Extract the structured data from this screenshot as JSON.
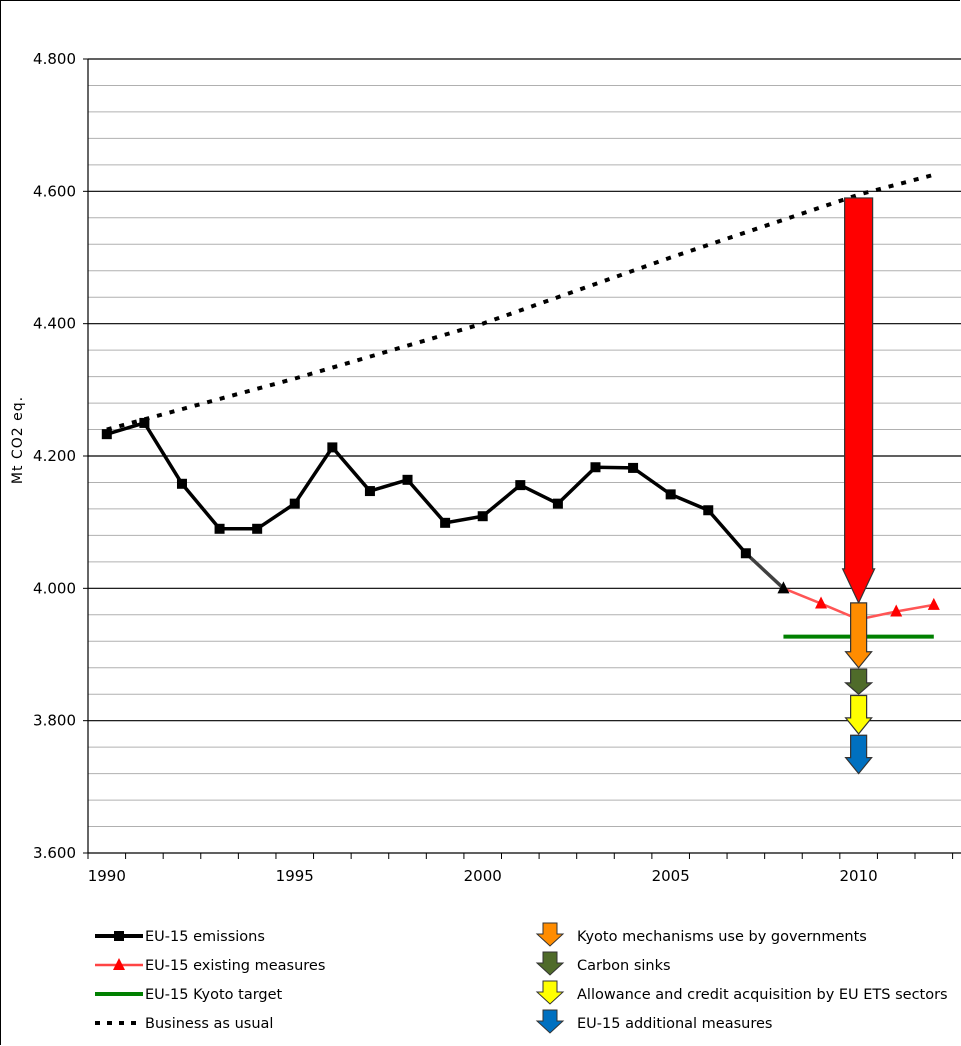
{
  "chart_data": {
    "type": "line",
    "title": "",
    "xlabel": "",
    "ylabel": "Mt CO2 eq.",
    "ylim": [
      3600,
      4800
    ],
    "xlim": [
      1989.5,
      2012.75
    ],
    "y_major_ticks": [
      3600,
      3800,
      4000,
      4200,
      4400,
      4600,
      4800
    ],
    "y_tick_labels": [
      "3.600",
      "3.800",
      "4.000",
      "4.200",
      "4.400",
      "4.600",
      "4.800"
    ],
    "x_tick_labels": [
      "1990",
      "1995",
      "2000",
      "2005",
      "2010"
    ],
    "x_tick_values": [
      1990,
      1995,
      2000,
      2005,
      2010
    ],
    "grid": true,
    "legend_position": "bottom",
    "series": [
      {
        "name": "EU-15 emissions",
        "style": "line-square",
        "color": "#000000",
        "x": [
          1990,
          1991,
          1992,
          1993,
          1994,
          1995,
          1996,
          1997,
          1998,
          1999,
          2000,
          2001,
          2002,
          2003,
          2004,
          2005,
          2006,
          2007
        ],
        "y": [
          4233,
          4250,
          4158,
          4090,
          4090,
          4128,
          4213,
          4147,
          4164,
          4099,
          4109,
          4156,
          4128,
          4183,
          4182,
          4142,
          4118,
          4053
        ]
      },
      {
        "name": "EU-15 existing measures",
        "style": "line-triangle",
        "color": "#ff0000",
        "x": [
          2008,
          2009,
          2010,
          2011,
          2012
        ],
        "y": [
          4000,
          3977,
          3953,
          3965,
          3975
        ]
      },
      {
        "name": "EU-15 Kyoto target",
        "style": "line",
        "color": "#008000",
        "x": [
          2008,
          2012
        ],
        "y": [
          3927,
          3927
        ]
      },
      {
        "name": "Business as usual",
        "style": "dotted",
        "color": "#000000",
        "x": [
          1990,
          1995,
          2000,
          2005,
          2010,
          2012
        ],
        "y": [
          4240,
          4317,
          4400,
          4500,
          4595,
          4625
        ]
      }
    ],
    "bridge": {
      "name": "",
      "x": [
        2007,
        2008
      ],
      "y": [
        4053,
        4000
      ],
      "color": "#404040"
    },
    "arrows": [
      {
        "name": "",
        "x": 2010,
        "from": 4590,
        "to": 3978,
        "color": "#ff0000"
      },
      {
        "name": "Kyoto mechanisms use by governments",
        "x": 2010,
        "from": 3978,
        "to": 3880,
        "color": "#ff8c00"
      },
      {
        "name": "Carbon sinks",
        "x": 2010,
        "from": 3878,
        "to": 3840,
        "color": "#4f6b2a"
      },
      {
        "name": "Allowance and credit acquisition by EU ETS sectors",
        "x": 2010,
        "from": 3838,
        "to": 3780,
        "color": "#ffff00"
      },
      {
        "name": "EU-15 additional measures",
        "x": 2010,
        "from": 3778,
        "to": 3720,
        "color": "#0070c0"
      }
    ]
  },
  "legend": {
    "left": [
      {
        "label": "EU-15 emissions",
        "style": "line-square",
        "color": "#000000"
      },
      {
        "label": "EU-15 existing measures",
        "style": "line-triangle",
        "color": "#ff4444"
      },
      {
        "label": "EU-15 Kyoto target",
        "style": "line",
        "color": "#008000"
      },
      {
        "label": "Business as usual",
        "style": "dotted",
        "color": "#000000"
      }
    ],
    "right": [
      {
        "label": "Kyoto mechanisms use by governments",
        "color": "#ff8c00"
      },
      {
        "label": "Carbon sinks",
        "color": "#4f6b2a"
      },
      {
        "label": "Allowance and credit acquisition by EU ETS sectors",
        "color": "#ffff00"
      },
      {
        "label": "EU-15 additional measures",
        "color": "#0070c0"
      }
    ]
  }
}
